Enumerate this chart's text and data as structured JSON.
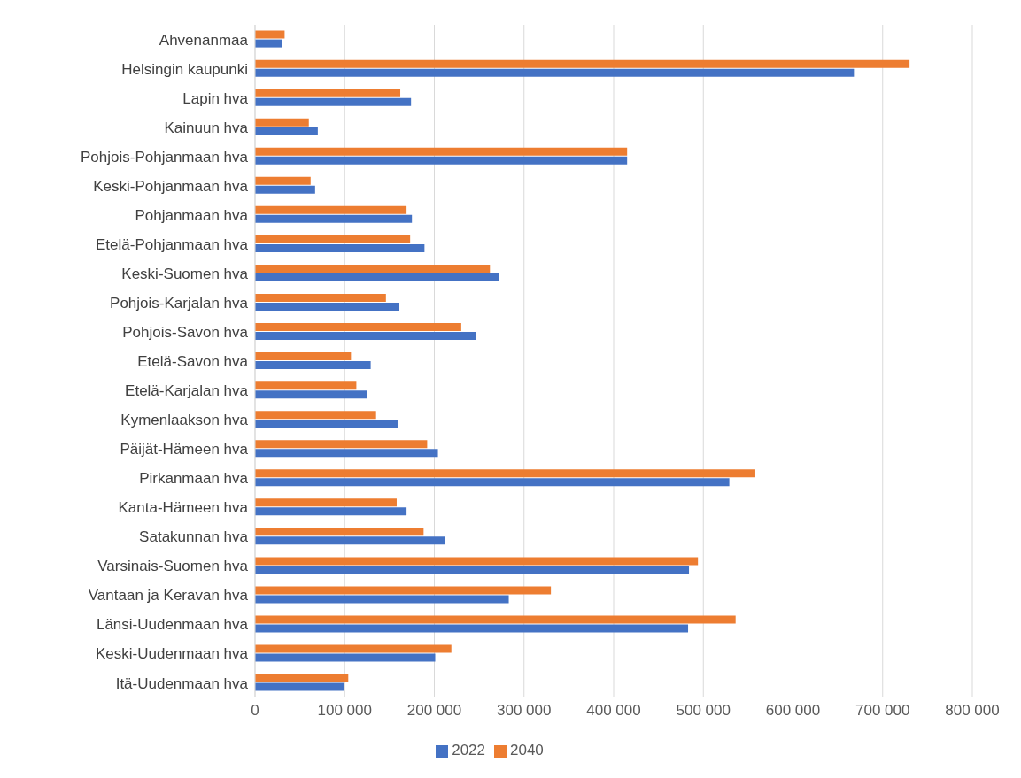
{
  "chart_data": {
    "type": "bar",
    "orientation": "horizontal",
    "categories": [
      "Ahvenanmaa",
      "Helsingin kaupunki",
      "Lapin hva",
      "Kainuun hva",
      "Pohjois-Pohjanmaan hva",
      "Keski-Pohjanmaan hva",
      "Pohjanmaan hva",
      "Etelä-Pohjanmaan hva",
      "Keski-Suomen hva",
      "Pohjois-Karjalan hva",
      "Pohjois-Savon hva",
      "Etelä-Savon hva",
      "Etelä-Karjalan hva",
      "Kymenlaakson hva",
      "Päijät-Hämeen hva",
      "Pirkanmaan hva",
      "Kanta-Hämeen hva",
      "Satakunnan hva",
      "Varsinais-Suomen hva",
      "Vantaan ja Keravan hva",
      "Länsi-Uudenmaan hva",
      "Keski-Uudenmaan hva",
      "Itä-Uudenmaan hva"
    ],
    "series": [
      {
        "name": "2040",
        "color": "#ed7d31",
        "values": [
          33000,
          730000,
          162000,
          60000,
          415000,
          62000,
          169000,
          173000,
          262000,
          146000,
          230000,
          107000,
          113000,
          135000,
          192000,
          558000,
          158000,
          188000,
          494000,
          330000,
          536000,
          219000,
          104000
        ]
      },
      {
        "name": "2022",
        "color": "#4472c4",
        "values": [
          30000,
          668000,
          174000,
          70000,
          415000,
          67000,
          175000,
          189000,
          272000,
          161000,
          246000,
          129000,
          125000,
          159000,
          204000,
          529000,
          169000,
          212000,
          484000,
          283000,
          483000,
          201000,
          99000
        ]
      }
    ],
    "xlim": [
      0,
      800000
    ],
    "xticks": [
      0,
      {
        "value": 100000,
        "label": "100 000"
      },
      {
        "value": 200000,
        "label": "200 000"
      },
      {
        "value": 300000,
        "label": "300 000"
      },
      {
        "value": 400000,
        "label": "400 000"
      },
      {
        "value": 500000,
        "label": "500 000"
      },
      {
        "value": 600000,
        "label": "600 000"
      },
      {
        "value": 700000,
        "label": "700 000"
      },
      {
        "value": 800000,
        "label": "800 000"
      }
    ],
    "grid": "x",
    "legend": "bottom"
  }
}
